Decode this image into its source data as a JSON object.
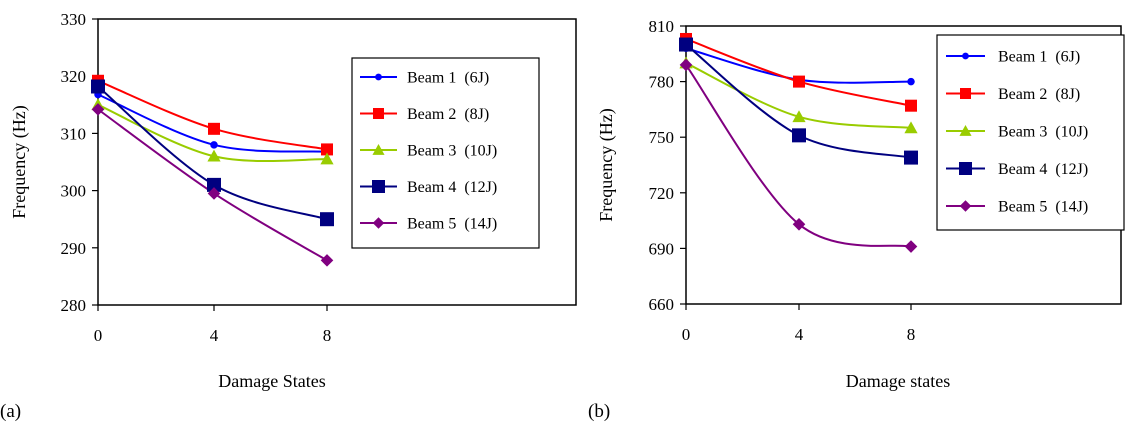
{
  "chart_data": [
    {
      "panel": "(a)",
      "type": "line",
      "xlabel": "Damage States",
      "ylabel": "Frequency (Hz)",
      "x": [
        0,
        4,
        8
      ],
      "xlim": [
        0,
        20
      ],
      "ylim": [
        280,
        330
      ],
      "yticks": [
        280,
        290,
        300,
        310,
        320,
        330
      ],
      "xticks": [
        0,
        4,
        8
      ],
      "grid": false,
      "legend_position": "right",
      "series": [
        {
          "name": "Beam 1  (6J)",
          "color": "#0000ff",
          "marker": "circle",
          "values": [
            316.8,
            308.0,
            306.8
          ]
        },
        {
          "name": "Beam 2  (8J)",
          "color": "#ff0000",
          "marker": "square",
          "values": [
            319.2,
            310.8,
            307.2
          ]
        },
        {
          "name": "Beam 3  (10J)",
          "color": "#99cc00",
          "marker": "triangle",
          "values": [
            315.0,
            306.0,
            305.5
          ]
        },
        {
          "name": "Beam 4  (12J)",
          "color": "#000080",
          "marker": "square",
          "values": [
            318.2,
            301.0,
            295.0
          ]
        },
        {
          "name": "Beam 5  (14J)",
          "color": "#800080",
          "marker": "diamond",
          "values": [
            314.2,
            299.5,
            287.8
          ]
        }
      ]
    },
    {
      "panel": "(b)",
      "type": "line",
      "xlabel": "Damage states",
      "ylabel": "Frequency (Hz)",
      "x": [
        0,
        4,
        8
      ],
      "xlim": [
        0,
        20
      ],
      "ylim": [
        660,
        810
      ],
      "yticks": [
        660,
        690,
        720,
        750,
        780,
        810
      ],
      "xticks": [
        0,
        4,
        8
      ],
      "grid": false,
      "legend_position": "right",
      "series": [
        {
          "name": "Beam 1  (6J)",
          "color": "#0000ff",
          "marker": "circle",
          "values": [
            798,
            781,
            780
          ]
        },
        {
          "name": "Beam 2  (8J)",
          "color": "#ff0000",
          "marker": "square",
          "values": [
            803,
            780,
            767
          ]
        },
        {
          "name": "Beam 3  (10J)",
          "color": "#99cc00",
          "marker": "triangle",
          "values": [
            790,
            761,
            755
          ]
        },
        {
          "name": "Beam 4  (12J)",
          "color": "#000080",
          "marker": "square",
          "values": [
            800,
            751,
            739
          ]
        },
        {
          "name": "Beam 5  (14J)",
          "color": "#800080",
          "marker": "diamond",
          "values": [
            789,
            703,
            691
          ]
        }
      ]
    }
  ]
}
